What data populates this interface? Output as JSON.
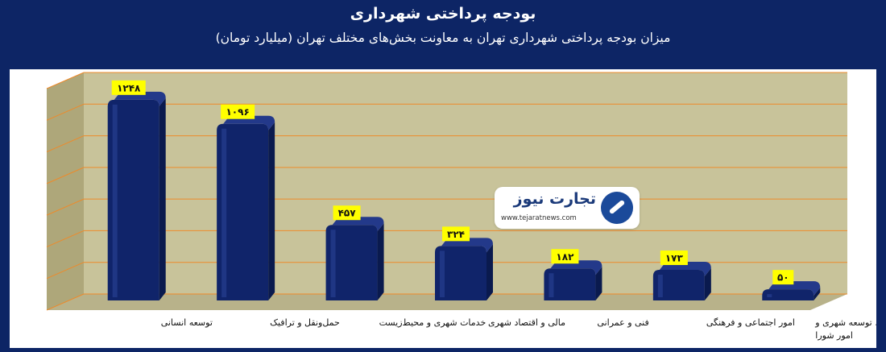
{
  "header": {
    "title": "بودجه پرداختی شهرداری",
    "subtitle": "میزان بودجه پرداختی شهرداری تهران به معاونت بخش‌های مختلف تهران (میلیارد تومان)"
  },
  "logo": {
    "name": "تجارت نیوز",
    "url": "www.tejaratnews.com"
  },
  "colors": {
    "background": "#0d2565",
    "plot_wall": "#c8c39a",
    "gridline": "#ee8a2a",
    "bar": "#10246a",
    "label_box": "#ffff00"
  },
  "chart_data": {
    "type": "bar",
    "categories": [
      [
        "توسعه انسانی"
      ],
      [
        "حمل‌ونقل و ترافیک"
      ],
      [
        "خدمات شهری و محیط‌زیست"
      ],
      [
        "مالی و اقتصاد شهری"
      ],
      [
        "فنی و عمرانی"
      ],
      [
        "امور اجتماعی و فرهنگی"
      ],
      [
        "برنامه‌ریزی، توسعه شهری و",
        "امور شورا"
      ]
    ],
    "values": [
      1248,
      1096,
      457,
      324,
      182,
      173,
      50
    ],
    "data_labels": [
      "۱۲۴۸",
      "۱۰۹۶",
      "۴۵۷",
      "۳۲۴",
      "۱۸۲",
      "۱۷۳",
      "۵۰"
    ],
    "ylim": [
      0,
      1400
    ],
    "grid": true,
    "legend": "none"
  }
}
